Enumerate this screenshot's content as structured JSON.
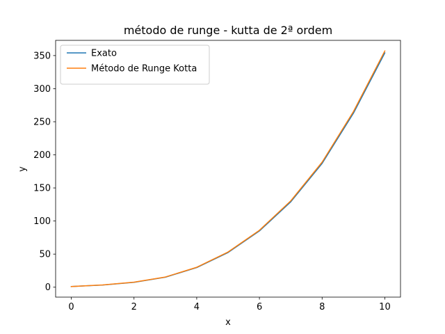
{
  "chart_data": {
    "type": "line",
    "title": "método de runge - kutta de 2ª ordem",
    "xlabel": "x",
    "ylabel": "y",
    "xlim": [
      -0.5,
      10.5
    ],
    "ylim": [
      -15,
      373
    ],
    "xticks": [
      0,
      2,
      4,
      6,
      8,
      10
    ],
    "yticks": [
      0,
      50,
      100,
      150,
      200,
      250,
      300,
      350
    ],
    "grid": false,
    "legend_position": "upper-left",
    "x": [
      0,
      1,
      2,
      3,
      4,
      5,
      6,
      7,
      8,
      9,
      10
    ],
    "series": [
      {
        "name": "Exato",
        "color": "#1f77b4",
        "values": [
          1,
          3.3,
          7.4,
          15.1,
          29.6,
          52.4,
          85,
          129,
          187,
          263,
          354
        ]
      },
      {
        "name": "Método de Runge Kotta",
        "color": "#ff7f0e",
        "values": [
          1,
          3.4,
          7.6,
          15.4,
          30.1,
          53.2,
          86,
          130.5,
          189,
          265.5,
          357
        ]
      }
    ]
  }
}
